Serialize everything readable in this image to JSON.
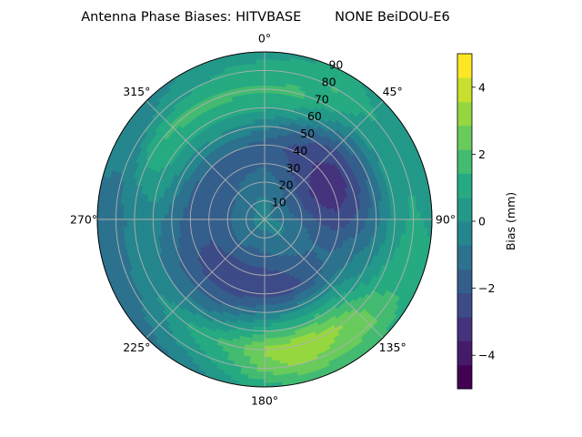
{
  "chart_data": {
    "type": "heatmap",
    "projection": "polar",
    "title": "Antenna Phase Biases: HITVBASE        NONE BeiDOU-E6",
    "theta_tick_labels": [
      "0°",
      "45°",
      "90°",
      "135°",
      "180°",
      "225°",
      "270°",
      "315°"
    ],
    "theta_ticks_deg": [
      0,
      45,
      90,
      135,
      180,
      225,
      270,
      315
    ],
    "theta_direction": "clockwise",
    "theta_zero": "top",
    "r_ticks": [
      10,
      20,
      30,
      40,
      50,
      60,
      70,
      80,
      90
    ],
    "r_tick_labels": [
      "10",
      "20",
      "30",
      "40",
      "50",
      "60",
      "70",
      "80",
      "90"
    ],
    "r_range": [
      0,
      90
    ],
    "grid": true,
    "colorbar": {
      "label": "Bias (mm)",
      "range": [
        -5,
        5
      ],
      "ticks": [
        -4,
        -2,
        0,
        2,
        4
      ],
      "tick_labels": [
        "−4",
        "−2",
        "0",
        "2",
        "4"
      ],
      "levels": [
        -5,
        -4.29,
        -3.57,
        -2.86,
        -2.14,
        -1.43,
        -0.71,
        0,
        0.71,
        1.43,
        2.14,
        2.86,
        3.57,
        4.29,
        5
      ],
      "colormap": "viridis"
    },
    "contour_azimuths_deg": [
      0,
      15,
      30,
      45,
      60,
      75,
      90,
      105,
      120,
      135,
      150,
      165,
      180,
      195,
      210,
      225,
      240,
      255,
      270,
      285,
      300,
      315,
      330,
      345
    ],
    "contour_radii": [
      0,
      10,
      20,
      30,
      40,
      50,
      60,
      70,
      80,
      90
    ],
    "bias_grid_mm": [
      [
        -0.5,
        -0.6,
        -1.0,
        -1.5,
        -1.8,
        -0.5,
        0.8,
        1.5,
        1.0,
        0.5
      ],
      [
        -0.5,
        -0.7,
        -1.2,
        -1.8,
        -2.2,
        -1.2,
        0.6,
        1.6,
        1.2,
        0.6
      ],
      [
        -0.5,
        -0.8,
        -1.5,
        -2.2,
        -2.6,
        -2.0,
        -0.2,
        0.9,
        1.5,
        0.8
      ],
      [
        -0.5,
        -1.0,
        -1.8,
        -2.6,
        -3.0,
        -2.6,
        -1.2,
        0.2,
        0.8,
        0.4
      ],
      [
        -0.5,
        -1.0,
        -2.0,
        -3.0,
        -3.6,
        -2.8,
        -1.4,
        0.1,
        0.6,
        0.4
      ],
      [
        -0.5,
        -1.0,
        -1.9,
        -2.8,
        -3.3,
        -2.6,
        -1.3,
        0.2,
        0.7,
        0.5
      ],
      [
        -0.5,
        -0.9,
        -1.6,
        -2.3,
        -2.6,
        -2.0,
        -1.0,
        0.4,
        0.8,
        0.6
      ],
      [
        -0.5,
        -0.7,
        -1.2,
        -1.8,
        -1.8,
        -1.2,
        -0.5,
        0.6,
        1.0,
        0.8
      ],
      [
        -0.5,
        -0.6,
        -1.0,
        -1.4,
        -1.3,
        -0.7,
        0.1,
        1.0,
        1.5,
        1.2
      ],
      [
        -0.5,
        -0.6,
        -1.0,
        -1.6,
        -1.6,
        -0.4,
        1.0,
        2.2,
        2.4,
        1.4
      ],
      [
        -0.5,
        -0.7,
        -1.2,
        -2.0,
        -2.2,
        -0.5,
        1.6,
        3.2,
        2.6,
        1.6
      ],
      [
        -0.5,
        -0.8,
        -1.4,
        -2.2,
        -2.5,
        -0.6,
        1.5,
        3.6,
        3.0,
        1.6
      ],
      [
        -0.5,
        -0.8,
        -1.6,
        -2.4,
        -2.5,
        -0.8,
        1.2,
        3.0,
        2.5,
        1.2
      ],
      [
        -0.5,
        -0.8,
        -1.7,
        -2.5,
        -2.6,
        -1.2,
        0.5,
        1.8,
        1.2,
        0.2
      ],
      [
        -0.5,
        -0.8,
        -1.7,
        -2.5,
        -2.6,
        -1.7,
        -0.3,
        1.2,
        0.4,
        -0.6
      ],
      [
        -0.5,
        -0.8,
        -1.6,
        -2.4,
        -2.4,
        -1.8,
        -0.6,
        0.4,
        -0.4,
        -1.0
      ],
      [
        -0.5,
        -0.8,
        -1.5,
        -2.2,
        -2.2,
        -1.6,
        -0.8,
        -0.2,
        -0.8,
        -1.0
      ],
      [
        -0.5,
        -0.8,
        -1.5,
        -2.1,
        -2.0,
        -1.3,
        -0.6,
        -0.4,
        -0.9,
        -0.9
      ],
      [
        -0.5,
        -0.8,
        -1.5,
        -2.0,
        -1.8,
        -1.1,
        -0.4,
        -0.4,
        -1.0,
        -0.8
      ],
      [
        -0.5,
        -0.8,
        -1.5,
        -2.0,
        -1.7,
        -0.6,
        0.3,
        0.0,
        -0.8,
        -0.7
      ],
      [
        -0.5,
        -0.8,
        -1.5,
        -2.0,
        -1.6,
        -0.3,
        0.8,
        1.2,
        -0.4,
        -0.6
      ],
      [
        -0.5,
        -0.8,
        -1.4,
        -1.9,
        -1.5,
        -0.2,
        0.8,
        1.6,
        0.2,
        -0.4
      ],
      [
        -0.5,
        -0.7,
        -1.2,
        -1.7,
        -1.4,
        -0.1,
        1.0,
        1.8,
        0.6,
        0.0
      ],
      [
        -0.5,
        -0.6,
        -1.1,
        -1.6,
        -1.5,
        -0.3,
        1.0,
        1.6,
        0.9,
        0.3
      ]
    ]
  }
}
